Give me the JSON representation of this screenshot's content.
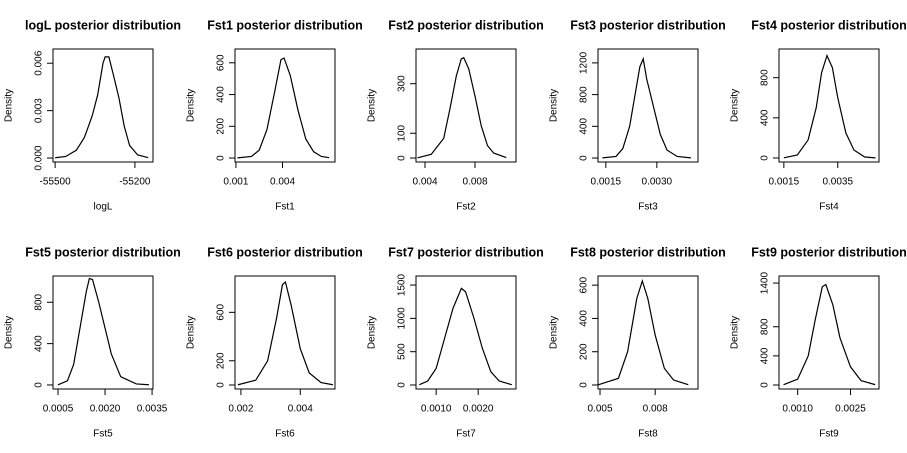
{
  "chart_data": [
    {
      "type": "line",
      "title": "logL posterior distribution",
      "xlabel": "logL",
      "ylabel": "Density",
      "color": "#000000",
      "x": [
        -55500,
        -55460,
        -55420,
        -55390,
        -55360,
        -55340,
        -55320,
        -55312,
        -55298,
        -55280,
        -55260,
        -55240,
        -55220,
        -55190,
        -55150
      ],
      "values": [
        2e-05,
        0.0001,
        0.0005,
        0.0013,
        0.0027,
        0.004,
        0.006,
        0.0064,
        0.0064,
        0.0052,
        0.0038,
        0.002,
        0.0008,
        0.0002,
        2e-05
      ],
      "xlim": [
        -55508,
        -55132
      ],
      "xticks": [
        -55500,
        -55200
      ],
      "ylim": [
        -0.00025,
        0.0069
      ],
      "yticks": [
        {
          "value": 0,
          "label": "0.000"
        },
        {
          "value": 0.003,
          "label": "0.003"
        },
        {
          "value": 0.006,
          "label": "0.006"
        }
      ]
    },
    {
      "type": "line",
      "title": "Fst1 posterior distribution",
      "xlabel": "Fst1",
      "ylabel": "Density",
      "color": "#000000",
      "x": [
        0.0011,
        0.002,
        0.0025,
        0.003,
        0.0035,
        0.0039,
        0.0041,
        0.0045,
        0.005,
        0.0055,
        0.006,
        0.0065,
        0.007
      ],
      "values": [
        1,
        10,
        50,
        180,
        420,
        620,
        630,
        520,
        300,
        120,
        40,
        10,
        2
      ],
      "xlim": [
        0.00094,
        0.00738
      ],
      "xticks": [
        0.001,
        0.004
      ],
      "ylim": [
        -25,
        687
      ],
      "yticks": [
        0,
        200,
        400,
        600
      ]
    },
    {
      "type": "line",
      "title": "Fst2 posterior distribution",
      "xlabel": "Fst2",
      "ylabel": "Density",
      "color": "#000000",
      "x": [
        0.0034,
        0.0045,
        0.0055,
        0.006,
        0.0065,
        0.0069,
        0.0071,
        0.0075,
        0.008,
        0.0085,
        0.009,
        0.0095,
        0.0105
      ],
      "values": [
        1,
        15,
        80,
        200,
        330,
        400,
        405,
        360,
        250,
        130,
        50,
        20,
        2
      ],
      "xlim": [
        0.00328,
        0.01128
      ],
      "xticks": [
        0.004,
        0.008
      ],
      "ylim": [
        -16,
        440
      ],
      "yticks": [
        0,
        100,
        300
      ]
    },
    {
      "type": "line",
      "title": "Fst3 posterior distribution",
      "xlabel": "Fst3",
      "ylabel": "Density",
      "color": "#000000",
      "x": [
        0.0014,
        0.0018,
        0.002,
        0.0022,
        0.0024,
        0.0025,
        0.0026,
        0.0027,
        0.0029,
        0.0031,
        0.0033,
        0.0036,
        0.004
      ],
      "values": [
        2,
        20,
        120,
        400,
        900,
        1150,
        1250,
        1000,
        650,
        300,
        100,
        20,
        2
      ],
      "xlim": [
        0.00127,
        0.00421
      ],
      "xticks": [
        0.0015,
        {
          "value": 0.003,
          "label": "0.0030"
        }
      ],
      "ylim": [
        -50,
        1375
      ],
      "yticks": [
        0,
        400,
        800,
        1200
      ]
    },
    {
      "type": "line",
      "title": "Fst4 posterior distribution",
      "xlabel": "Fst4",
      "ylabel": "Density",
      "color": "#000000",
      "x": [
        0.0015,
        0.002,
        0.0024,
        0.0027,
        0.0029,
        0.0031,
        0.0033,
        0.0035,
        0.0038,
        0.0041,
        0.0045,
        0.0049
      ],
      "values": [
        2,
        30,
        180,
        500,
        850,
        1020,
        900,
        600,
        250,
        80,
        10,
        1
      ],
      "xlim": [
        0.00132,
        0.00503
      ],
      "xticks": [
        0.0015,
        0.0035
      ],
      "ylim": [
        -40,
        1086
      ],
      "yticks": [
        0,
        400,
        800
      ]
    },
    {
      "type": "line",
      "title": "Fst5 posterior distribution",
      "xlabel": "Fst5",
      "ylabel": "Density",
      "color": "#000000",
      "x": [
        0.0005,
        0.0008,
        0.001,
        0.0012,
        0.0014,
        0.0015,
        0.0016,
        0.0018,
        0.002,
        0.0022,
        0.0025,
        0.003,
        0.0034
      ],
      "values": [
        2,
        40,
        200,
        550,
        900,
        1030,
        1020,
        800,
        550,
        300,
        80,
        10,
        2
      ],
      "xlim": [
        0.00034,
        0.00353
      ],
      "xticks": [
        0.0005,
        {
          "value": 0.002,
          "label": "0.0020"
        },
        0.0035
      ],
      "ylim": [
        -39,
        1054
      ],
      "yticks": [
        0,
        400,
        800
      ]
    },
    {
      "type": "line",
      "title": "Fst6 posterior distribution",
      "xlabel": "Fst6",
      "ylabel": "Density",
      "color": "#000000",
      "x": [
        0.0019,
        0.0025,
        0.0029,
        0.0032,
        0.0034,
        0.0035,
        0.0037,
        0.004,
        0.0043,
        0.0047,
        0.0051
      ],
      "values": [
        2,
        40,
        200,
        550,
        830,
        850,
        650,
        300,
        100,
        20,
        2
      ],
      "xlim": [
        0.0018,
        0.00517
      ],
      "xticks": [
        0.002,
        0.004
      ],
      "ylim": [
        -33,
        900
      ],
      "yticks": [
        0,
        200,
        600
      ]
    },
    {
      "type": "line",
      "title": "Fst7 posterior distribution",
      "xlabel": "Fst7",
      "ylabel": "Density",
      "color": "#000000",
      "x": [
        0.0006,
        0.0008,
        0.001,
        0.0012,
        0.0014,
        0.0016,
        0.0017,
        0.0019,
        0.0021,
        0.0023,
        0.0025,
        0.0028
      ],
      "values": [
        5,
        60,
        250,
        700,
        1150,
        1450,
        1400,
        1000,
        550,
        200,
        60,
        5
      ],
      "xlim": [
        0.00052,
        0.0029
      ],
      "xticks": [
        {
          "value": 0.001,
          "label": "0.0010"
        },
        {
          "value": 0.002,
          "label": "0.0020"
        }
      ],
      "ylim": [
        -60,
        1636
      ],
      "yticks": [
        0,
        500,
        1000,
        1500
      ]
    },
    {
      "type": "line",
      "title": "Fst8 posterior distribution",
      "xlabel": "Fst8",
      "ylabel": "Density",
      "color": "#000000",
      "x": [
        0.0049,
        0.006,
        0.0065,
        0.007,
        0.0073,
        0.0076,
        0.008,
        0.0085,
        0.009,
        0.0098
      ],
      "values": [
        1,
        40,
        200,
        520,
        625,
        520,
        300,
        100,
        30,
        2
      ],
      "xlim": [
        0.00489,
        0.01033
      ],
      "xticks": [
        0.005,
        0.008
      ],
      "ylim": [
        -24,
        655
      ],
      "yticks": [
        0,
        200,
        400,
        600
      ]
    },
    {
      "type": "line",
      "title": "Fst9 posterior distribution",
      "xlabel": "Fst9",
      "ylabel": "Density",
      "color": "#000000",
      "x": [
        0.0006,
        0.001,
        0.0013,
        0.0015,
        0.0017,
        0.0018,
        0.002,
        0.0022,
        0.0025,
        0.0028,
        0.0032
      ],
      "values": [
        5,
        80,
        400,
        900,
        1350,
        1380,
        1100,
        650,
        250,
        60,
        5
      ],
      "xlim": [
        0.00047,
        0.00331
      ],
      "xticks": [
        {
          "value": 0.001,
          "label": "0.0010"
        },
        0.0025
      ],
      "ylim": [
        -55,
        1497
      ],
      "yticks": [
        0,
        400,
        800,
        1400
      ]
    }
  ]
}
